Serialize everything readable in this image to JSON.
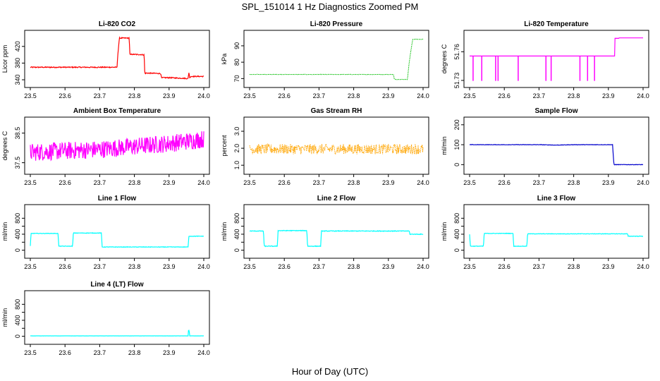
{
  "figure": {
    "title": "SPL_151014  1 Hz Diagnostics Zoomed PM",
    "xlabel": "Hour of Day (UTC)"
  },
  "chart_data": [
    {
      "type": "line",
      "title": "Li-820 CO2",
      "ylabel": "Licor ppm",
      "color": "#ff0000",
      "xlim": [
        23.5,
        24.0
      ],
      "ylim": [
        335,
        445
      ],
      "xticks": [
        23.5,
        23.6,
        23.7,
        23.8,
        23.9,
        24.0
      ],
      "xtick_labels": [
        "23.5",
        "23.6",
        "23.7",
        "23.8",
        "23.9",
        "24.0"
      ],
      "yticks": [
        340,
        380,
        420
      ],
      "ytick_labels": [
        "340",
        "380",
        "420"
      ],
      "series": [
        {
          "x": [
            23.5,
            23.75,
            23.752,
            23.757,
            23.785,
            23.787,
            23.792,
            23.828,
            23.83,
            23.835,
            23.876,
            23.878,
            23.883,
            23.9,
            23.955,
            23.957,
            23.96,
            23.962,
            23.965,
            24.0
          ],
          "y": [
            370,
            370,
            400,
            440,
            440,
            400,
            401,
            400,
            355,
            356,
            355,
            344,
            345,
            345,
            343,
            358,
            343,
            348,
            348,
            348
          ],
          "noise": 1.2
        }
      ]
    },
    {
      "type": "line",
      "title": "Li-820 Pressure",
      "ylabel": "kPa",
      "color": "#00bb00",
      "xlim": [
        23.5,
        24.0
      ],
      "ylim": [
        68,
        96
      ],
      "xticks": [
        23.5,
        23.6,
        23.7,
        23.8,
        23.9,
        24.0
      ],
      "xtick_labels": [
        "23.5",
        "23.6",
        "23.7",
        "23.8",
        "23.9",
        "24.0"
      ],
      "yticks": [
        70,
        80,
        90
      ],
      "ytick_labels": [
        "70",
        "80",
        "90"
      ],
      "series": [
        {
          "x": [
            23.5,
            23.915,
            23.917,
            23.955,
            23.96,
            23.97,
            24.0
          ],
          "y": [
            72.5,
            72.5,
            69.5,
            69.5,
            80,
            94,
            94
          ],
          "noise": 0.1,
          "dotted": true
        }
      ]
    },
    {
      "type": "line",
      "title": "Li-820 Temperature",
      "ylabel": "degrees C",
      "color": "#ff00ff",
      "xlim": [
        23.5,
        24.0
      ],
      "ylim": [
        51.7285,
        51.7765
      ],
      "xticks": [
        23.5,
        23.6,
        23.7,
        23.8,
        23.9,
        24.0
      ],
      "xtick_labels": [
        "23.5",
        "23.6",
        "23.7",
        "23.8",
        "23.9",
        "24.0"
      ],
      "yticks": [
        51.73,
        51.76
      ],
      "ytick_labels": [
        "51.73",
        "51.76"
      ],
      "series": [
        {
          "x": [
            23.5,
            23.9185,
            23.919,
            23.93,
            23.931,
            24.0
          ],
          "y": [
            51.7555,
            51.7555,
            51.774,
            51.774,
            51.7745,
            51.7745
          ],
          "spikes_down": [
            23.51,
            23.535,
            23.575,
            23.582,
            23.64,
            23.72,
            23.735,
            23.818,
            23.84,
            23.86
          ],
          "spikes_up": [
            23.92,
            23.925
          ],
          "spike_low": 51.7295,
          "spike_high": 51.7745
        }
      ]
    },
    {
      "type": "line",
      "title": "Ambient Box Temperature",
      "ylabel": "degrees C",
      "color": "#ff00ff",
      "xlim": [
        23.5,
        24.0
      ],
      "ylim": [
        37.3,
        38.85
      ],
      "xticks": [
        23.5,
        23.6,
        23.7,
        23.8,
        23.9,
        24.0
      ],
      "xtick_labels": [
        "23.5",
        "23.6",
        "23.7",
        "23.8",
        "23.9",
        "24.0"
      ],
      "yticks": [
        37.5,
        38.5
      ],
      "ytick_labels": [
        "37.5",
        "38.5"
      ],
      "series": [
        {
          "x": [
            23.5,
            23.6,
            23.7,
            23.8,
            23.9,
            24.0
          ],
          "y": [
            37.85,
            37.9,
            37.95,
            38.05,
            38.15,
            38.3
          ],
          "noise": 0.3
        }
      ]
    },
    {
      "type": "line",
      "title": "Gas Stream RH",
      "ylabel": "percent",
      "color": "#ffa500",
      "xlim": [
        23.5,
        24.0
      ],
      "ylim": [
        0.8,
        3.5
      ],
      "xticks": [
        23.5,
        23.6,
        23.7,
        23.8,
        23.9,
        24.0
      ],
      "xtick_labels": [
        "23.5",
        "23.6",
        "23.7",
        "23.8",
        "23.9",
        "24.0"
      ],
      "yticks": [
        1.0,
        2.0,
        3.0
      ],
      "ytick_labels": [
        "1.0",
        "2.0",
        "3.0"
      ],
      "series": [
        {
          "x": [
            23.5,
            24.0
          ],
          "y": [
            1.95,
            1.95
          ],
          "noise": 0.3,
          "dotted": true
        }
      ]
    },
    {
      "type": "line",
      "title": "Sample Flow",
      "ylabel": "ml/min",
      "color": "#0000cc",
      "xlim": [
        23.5,
        24.0
      ],
      "ylim": [
        -20,
        210
      ],
      "xticks": [
        23.5,
        23.6,
        23.7,
        23.8,
        23.9,
        24.0
      ],
      "xtick_labels": [
        "23.5",
        "23.6",
        "23.7",
        "23.8",
        "23.9",
        "24.0"
      ],
      "yticks": [
        0,
        100,
        200
      ],
      "ytick_labels": [
        "0",
        "100",
        "200"
      ],
      "series": [
        {
          "x": [
            23.5,
            23.7,
            23.75,
            23.8,
            23.9,
            23.912,
            23.916,
            23.925,
            24.0
          ],
          "y": [
            100,
            100,
            98,
            100,
            100,
            100,
            0,
            0,
            0
          ],
          "noise": 1.0
        }
      ]
    },
    {
      "type": "line",
      "title": "Line 1 Flow",
      "ylabel": "ml/min",
      "color": "#00ffff",
      "xlim": [
        23.5,
        24.0
      ],
      "ylim": [
        -60,
        1000
      ],
      "xticks": [
        23.5,
        23.6,
        23.7,
        23.8,
        23.9,
        24.0
      ],
      "xtick_labels": [
        "23.5",
        "23.6",
        "23.7",
        "23.8",
        "23.9",
        "24.0"
      ],
      "yticks": [
        0,
        200,
        400,
        600,
        800
      ],
      "ytick_labels": [
        "0",
        "400",
        "800"
      ],
      "series": [
        {
          "x": [
            23.5,
            23.502,
            23.58,
            23.582,
            23.622,
            23.624,
            23.705,
            23.707,
            23.955,
            23.957,
            24.0
          ],
          "y": [
            100,
            420,
            420,
            100,
            100,
            430,
            430,
            80,
            80,
            350,
            350
          ],
          "noise": 6
        }
      ]
    },
    {
      "type": "line",
      "title": "Line 2 Flow",
      "ylabel": "ml/min",
      "color": "#00ffff",
      "xlim": [
        23.5,
        24.0
      ],
      "ylim": [
        -60,
        1000
      ],
      "xticks": [
        23.5,
        23.6,
        23.7,
        23.8,
        23.9,
        24.0
      ],
      "xtick_labels": [
        "23.5",
        "23.6",
        "23.7",
        "23.8",
        "23.9",
        "24.0"
      ],
      "yticks": [
        0,
        200,
        400,
        600,
        800
      ],
      "ytick_labels": [
        "0",
        "400",
        "800"
      ],
      "series": [
        {
          "x": [
            23.5,
            23.54,
            23.542,
            23.58,
            23.582,
            23.665,
            23.667,
            23.705,
            23.707,
            23.96,
            23.962,
            24.0
          ],
          "y": [
            480,
            480,
            100,
            100,
            490,
            490,
            100,
            100,
            480,
            480,
            400,
            400
          ],
          "noise": 8
        }
      ]
    },
    {
      "type": "line",
      "title": "Line 3 Flow",
      "ylabel": "ml/min",
      "color": "#00ffff",
      "xlim": [
        23.5,
        24.0
      ],
      "ylim": [
        -60,
        1000
      ],
      "xticks": [
        23.5,
        23.6,
        23.7,
        23.8,
        23.9,
        24.0
      ],
      "xtick_labels": [
        "23.5",
        "23.6",
        "23.7",
        "23.8",
        "23.9",
        "24.0"
      ],
      "yticks": [
        0,
        200,
        400,
        600,
        800
      ],
      "ytick_labels": [
        "0",
        "400",
        "800"
      ],
      "series": [
        {
          "x": [
            23.5,
            23.502,
            23.54,
            23.542,
            23.625,
            23.627,
            23.665,
            23.667,
            23.955,
            23.957,
            24.0
          ],
          "y": [
            400,
            100,
            100,
            420,
            420,
            100,
            100,
            410,
            410,
            350,
            350
          ],
          "noise": 6
        }
      ]
    },
    {
      "type": "line",
      "title": "Line 4 (LT) Flow",
      "ylabel": "ml/min",
      "color": "#00ffff",
      "xlim": [
        23.5,
        24.0
      ],
      "ylim": [
        -60,
        1000
      ],
      "xticks": [
        23.5,
        23.6,
        23.7,
        23.8,
        23.9,
        24.0
      ],
      "xtick_labels": [
        "23.5",
        "23.6",
        "23.7",
        "23.8",
        "23.9",
        "24.0"
      ],
      "yticks": [
        0,
        200,
        400,
        600,
        800
      ],
      "ytick_labels": [
        "0",
        "400",
        "800"
      ],
      "series": [
        {
          "x": [
            23.5,
            23.955,
            23.956,
            23.958,
            23.959,
            24.0
          ],
          "y": [
            10,
            10,
            150,
            150,
            10,
            10
          ],
          "noise": 1
        }
      ]
    }
  ]
}
